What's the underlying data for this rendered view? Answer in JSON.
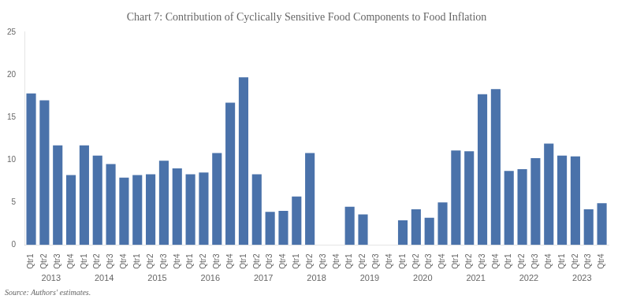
{
  "chart_data": {
    "type": "bar",
    "title": "Chart 7: Contribution of Cyclically Sensitive Food Components to Food Inflation",
    "categories": [
      "Qtr1",
      "Qtr2",
      "Qtr3",
      "Qtr4",
      "Qtr1",
      "Qtr2",
      "Qtr3",
      "Qtr4",
      "Qtr1",
      "Qtr2",
      "Qtr3",
      "Qtr4",
      "Qtr1",
      "Qtr2",
      "Qtr3",
      "Qtr4",
      "Qtr1",
      "Qtr2",
      "Qtr3",
      "Qtr4",
      "Qtr1",
      "Qtr2",
      "Qtr3",
      "Qtr4",
      "Qtr1",
      "Qtr2",
      "Qtr3",
      "Qtr4",
      "Qtr1",
      "Qtr2",
      "Qtr3",
      "Qtr4",
      "Qtr1",
      "Qtr2",
      "Qtr3",
      "Qtr4",
      "Qtr1",
      "Qtr2",
      "Qtr3",
      "Qtr4",
      "Qtr1",
      "Qtr2",
      "Qtr3",
      "Qtr4"
    ],
    "groups": [
      "2013",
      "2014",
      "2015",
      "2016",
      "2017",
      "2018",
      "2019",
      "2020",
      "2021",
      "2022",
      "2023"
    ],
    "values": [
      17.8,
      17.0,
      11.7,
      8.2,
      11.7,
      10.5,
      9.5,
      7.9,
      8.2,
      8.3,
      9.9,
      9.0,
      8.3,
      8.5,
      10.8,
      16.7,
      19.7,
      8.3,
      3.9,
      4.0,
      5.7,
      10.8,
      0.0,
      0.0,
      4.5,
      3.6,
      0.0,
      0.0,
      2.9,
      4.2,
      3.2,
      5.0,
      11.1,
      11.0,
      17.7,
      18.3,
      8.7,
      8.9,
      10.2,
      11.9,
      10.5,
      10.4,
      4.2,
      4.9
    ],
    "color": "#4a72aa",
    "ylim": [
      0,
      25
    ],
    "yticks": [
      0,
      5,
      10,
      15,
      20,
      25
    ],
    "grid": false,
    "annotations": [
      "Source: Authors' estimates."
    ]
  }
}
